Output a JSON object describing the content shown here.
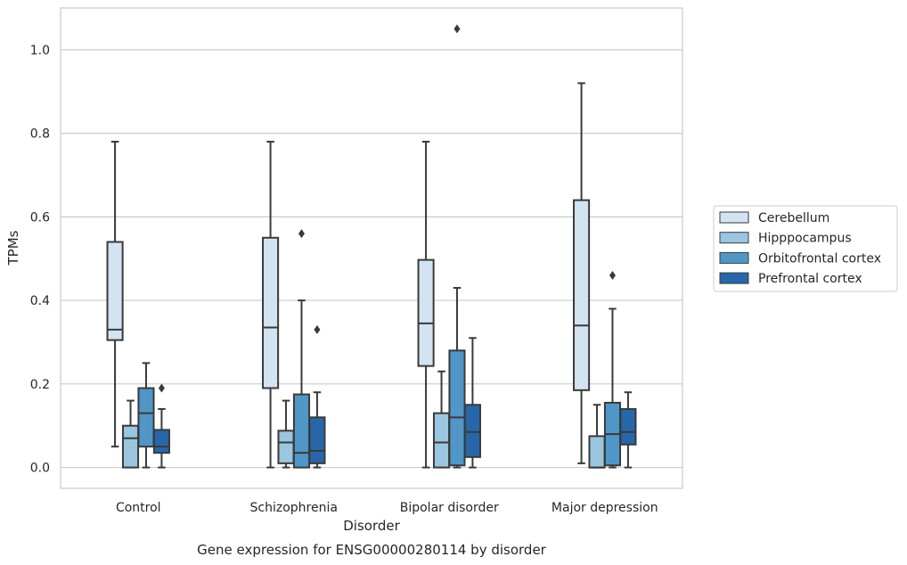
{
  "chart_data": {
    "type": "box",
    "title": "Gene expression for ENSG00000280114 by disorder",
    "xlabel": "Disorder",
    "ylabel": "TPMs",
    "ylim": [
      -0.05,
      1.1
    ],
    "yticks": [
      "0.0",
      "0.2",
      "0.4",
      "0.6",
      "0.8",
      "1.0"
    ],
    "grid": "horizontal",
    "legend_position": "right",
    "categories": [
      "Control",
      "Schizophrenia",
      "Bipolar disorder",
      "Major depression"
    ],
    "series": [
      {
        "name": "Cerebellum",
        "color": "#d3e3f2",
        "boxes": [
          {
            "q1": 0.305,
            "median": 0.33,
            "q3": 0.54,
            "whisker_low": 0.05,
            "whisker_high": 0.78,
            "outliers": []
          },
          {
            "q1": 0.19,
            "median": 0.335,
            "q3": 0.55,
            "whisker_low": 0.0,
            "whisker_high": 0.78,
            "outliers": []
          },
          {
            "q1": 0.243,
            "median": 0.345,
            "q3": 0.497,
            "whisker_low": 0.0,
            "whisker_high": 0.78,
            "outliers": []
          },
          {
            "q1": 0.185,
            "median": 0.34,
            "q3": 0.64,
            "whisker_low": 0.01,
            "whisker_high": 0.92,
            "outliers": []
          }
        ]
      },
      {
        "name": "Hipppocampus",
        "color": "#9ac6df",
        "boxes": [
          {
            "q1": 0.0,
            "median": 0.07,
            "q3": 0.1,
            "whisker_low": 0.0,
            "whisker_high": 0.16,
            "outliers": []
          },
          {
            "q1": 0.01,
            "median": 0.06,
            "q3": 0.088,
            "whisker_low": 0.0,
            "whisker_high": 0.16,
            "outliers": []
          },
          {
            "q1": 0.0,
            "median": 0.06,
            "q3": 0.13,
            "whisker_low": 0.0,
            "whisker_high": 0.23,
            "outliers": []
          },
          {
            "q1": 0.0,
            "median": 0.0,
            "q3": 0.075,
            "whisker_low": 0.0,
            "whisker_high": 0.15,
            "outliers": []
          }
        ]
      },
      {
        "name": "Orbitofrontal cortex",
        "color": "#5097c8",
        "boxes": [
          {
            "q1": 0.05,
            "median": 0.13,
            "q3": 0.19,
            "whisker_low": 0.0,
            "whisker_high": 0.25,
            "outliers": []
          },
          {
            "q1": 0.0,
            "median": 0.035,
            "q3": 0.175,
            "whisker_low": 0.0,
            "whisker_high": 0.4,
            "outliers": [
              0.56
            ]
          },
          {
            "q1": 0.005,
            "median": 0.12,
            "q3": 0.28,
            "whisker_low": 0.0,
            "whisker_high": 0.43,
            "outliers": [
              1.05
            ]
          },
          {
            "q1": 0.005,
            "median": 0.08,
            "q3": 0.155,
            "whisker_low": 0.0,
            "whisker_high": 0.38,
            "outliers": [
              0.46
            ]
          }
        ]
      },
      {
        "name": "Prefrontal cortex",
        "color": "#2767a9",
        "boxes": [
          {
            "q1": 0.035,
            "median": 0.05,
            "q3": 0.09,
            "whisker_low": 0.0,
            "whisker_high": 0.14,
            "outliers": [
              0.19
            ]
          },
          {
            "q1": 0.01,
            "median": 0.04,
            "q3": 0.12,
            "whisker_low": 0.0,
            "whisker_high": 0.18,
            "outliers": [
              0.33
            ]
          },
          {
            "q1": 0.025,
            "median": 0.085,
            "q3": 0.15,
            "whisker_low": 0.0,
            "whisker_high": 0.31,
            "outliers": []
          },
          {
            "q1": 0.055,
            "median": 0.085,
            "q3": 0.14,
            "whisker_low": 0.0,
            "whisker_high": 0.18,
            "outliers": []
          }
        ]
      }
    ]
  }
}
